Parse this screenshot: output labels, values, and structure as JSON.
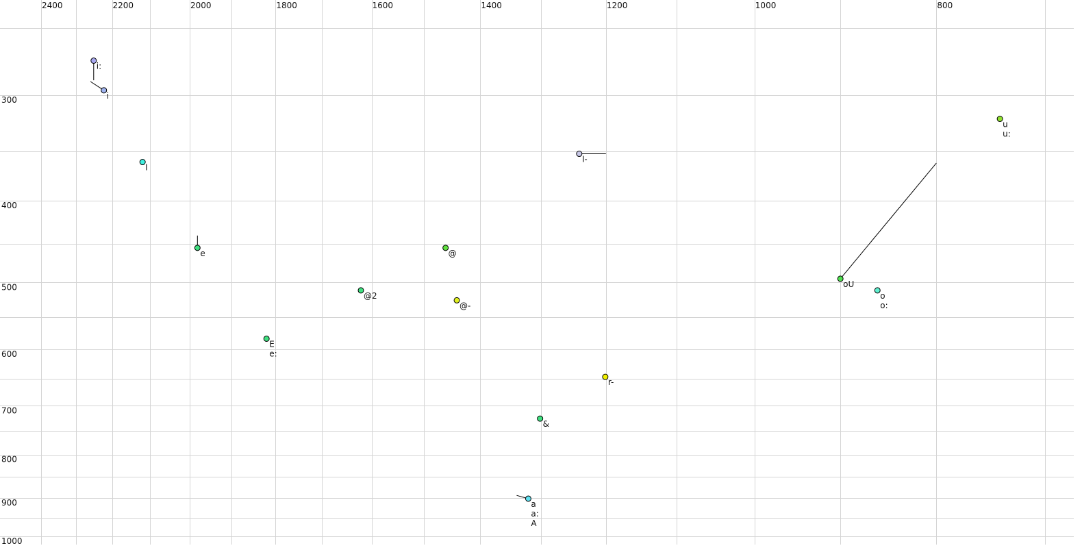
{
  "chart_data": {
    "type": "scatter",
    "title": "",
    "xlabel": "",
    "ylabel": "",
    "x_scale": "log",
    "y_scale": "log",
    "x_reversed": true,
    "xlim": [
      2400,
      700
    ],
    "ylim": [
      250,
      1000
    ],
    "grid": true,
    "x_ticks": [
      2400,
      2200,
      2000,
      1800,
      1600,
      1400,
      1200,
      1000,
      800
    ],
    "x_gridlines": [
      2400,
      2300,
      2200,
      2100,
      2000,
      1900,
      1800,
      1700,
      1600,
      1500,
      1400,
      1300,
      1200,
      1100,
      1000,
      900,
      800,
      700
    ],
    "y_ticks": [
      300,
      400,
      500,
      600,
      700,
      800,
      900,
      1000
    ],
    "y_gridlines": [
      250,
      300,
      350,
      400,
      450,
      500,
      550,
      600,
      650,
      700,
      750,
      800,
      850,
      900,
      950,
      1000
    ],
    "points": [
      {
        "labels": [
          "i:"
        ],
        "x": 2250,
        "y": 273,
        "color": "#a8a8f0",
        "tail": [
          2250,
          288
        ]
      },
      {
        "labels": [
          "i"
        ],
        "x": 2222,
        "y": 296,
        "color": "#a0b4f0",
        "tail": [
          2259,
          289
        ]
      },
      {
        "labels": [
          "I"
        ],
        "x": 2119,
        "y": 360,
        "color": "#40f0e0"
      },
      {
        "labels": [
          "e"
        ],
        "x": 1981,
        "y": 455,
        "color": "#40e080",
        "tail": [
          1981,
          440
        ]
      },
      {
        "labels": [
          "E",
          "e:"
        ],
        "x": 1820,
        "y": 583,
        "color": "#40e080"
      },
      {
        "labels": [
          "@2"
        ],
        "x": 1621,
        "y": 511,
        "color": "#40e080"
      },
      {
        "labels": [
          "@"
        ],
        "x": 1461,
        "y": 455,
        "color": "#60e040"
      },
      {
        "labels": [
          "@-"
        ],
        "x": 1441,
        "y": 525,
        "color": "#e0f020"
      },
      {
        "labels": [
          "I-"
        ],
        "x": 1240,
        "y": 352,
        "color": "#c8c8e8",
        "tail": [
          1200,
          352
        ]
      },
      {
        "labels": [
          "r-"
        ],
        "x": 1201,
        "y": 647,
        "color": "#f0f000",
        "tail": [
          1201,
          644
        ]
      },
      {
        "labels": [
          "&"
        ],
        "x": 1301,
        "y": 725,
        "color": "#40e080",
        "tail": [
          1301,
          721
        ]
      },
      {
        "labels": [
          "a",
          "a:",
          "A"
        ],
        "x": 1320,
        "y": 902,
        "color": "#60e0f0",
        "tail": [
          1339,
          894
        ]
      },
      {
        "labels": [
          "oU"
        ],
        "x": 900,
        "y": 495,
        "color": "#50e050",
        "tail": [
          800,
          361
        ]
      },
      {
        "labels": [
          "o",
          "o:"
        ],
        "x": 860,
        "y": 511,
        "color": "#60f0d0"
      },
      {
        "labels": [
          "u",
          "u:"
        ],
        "x": 740,
        "y": 320,
        "color": "#90e030"
      }
    ]
  }
}
